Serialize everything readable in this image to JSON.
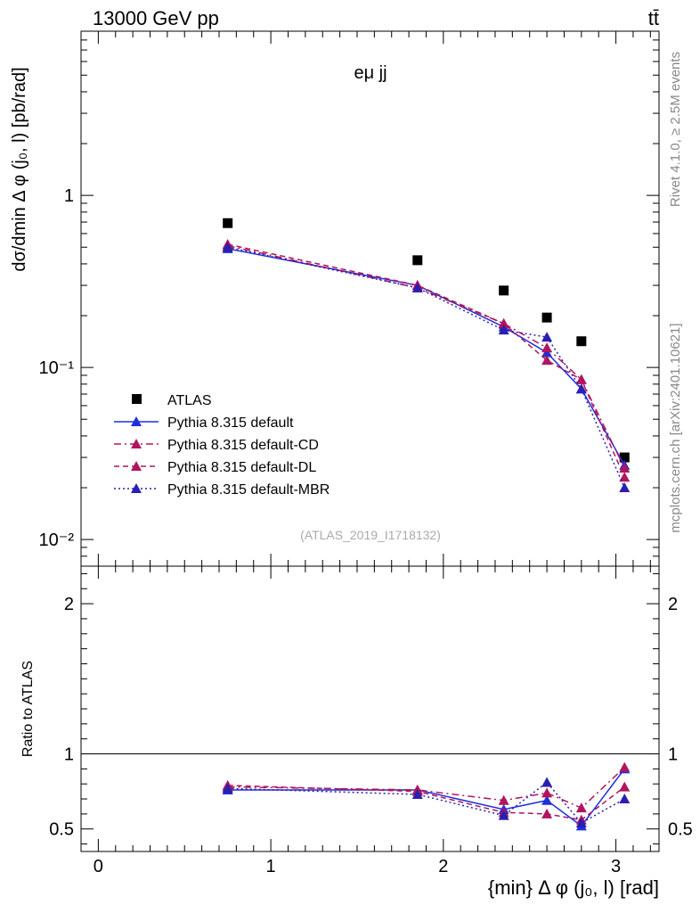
{
  "header": {
    "energy_label": "13000 GeV pp",
    "process_label": "tt̄",
    "rivet_label": "Rivet 4.1.0, ≥ 2.5M events",
    "source_label": "mcplots.cern.ch [arXiv:2401.10621]"
  },
  "chart_data": [
    {
      "type": "line",
      "panel": "main",
      "title": "eμ jj",
      "ylabel": "dσ/dmin Δ φ (j₀, l) [pb/rad]",
      "xlabel": "{min} Δ φ (j₀, l) [rad]",
      "yscale": "log",
      "xlim": [
        -0.1,
        3.25
      ],
      "ylim": [
        0.007,
        9.0
      ],
      "analysis_id": "(ATLAS_2019_I1718132)",
      "y_tick_labels": [
        "10⁻²",
        "10⁻¹",
        "1"
      ],
      "y_tick_values": [
        0.01,
        0.1,
        1
      ],
      "legend_position": "left-lower",
      "x": [
        0.75,
        1.85,
        2.35,
        2.6,
        2.8,
        3.05
      ],
      "series": [
        {
          "name": "ATLAS",
          "color": "#000000",
          "marker": "square",
          "dash": "none",
          "values": [
            0.69,
            0.42,
            0.28,
            0.195,
            0.142,
            0.03
          ]
        },
        {
          "name": "Pythia 8.315 default",
          "color": "#1f2fd9",
          "marker": "triangle",
          "dash": "solid",
          "values": [
            0.49,
            0.3,
            0.172,
            0.122,
            0.075,
            0.027
          ]
        },
        {
          "name": "Pythia 8.315 default-CD",
          "color": "#b0155d",
          "marker": "triangle",
          "dash": "dashdot",
          "values": [
            0.51,
            0.29,
            0.18,
            0.13,
            0.085,
            0.026
          ]
        },
        {
          "name": "Pythia 8.315 default-DL",
          "color": "#b0155d",
          "marker": "triangle",
          "dash": "dashed",
          "values": [
            0.52,
            0.3,
            0.18,
            0.11,
            0.085,
            0.023
          ]
        },
        {
          "name": "Pythia 8.315 default-MBR",
          "color": "#2a1fb0",
          "marker": "triangle",
          "dash": "dotted",
          "values": [
            0.5,
            0.29,
            0.165,
            0.15,
            0.075,
            0.02
          ]
        }
      ]
    },
    {
      "type": "line",
      "panel": "ratio",
      "ylabel": "Ratio to ATLAS",
      "xlabel": "{min} Δ φ (j₀, l) [rad]",
      "ylim": [
        0.35,
        2.25
      ],
      "reference_line": 1,
      "y_tick_labels": [
        "0.5",
        "1",
        "2"
      ],
      "y_tick_values": [
        0.5,
        1,
        2
      ],
      "x_tick_labels": [
        "0",
        "1",
        "2",
        "3"
      ],
      "x_tick_values": [
        0,
        1,
        2,
        3
      ],
      "x": [
        0.75,
        1.85,
        2.35,
        2.6,
        2.8,
        3.05
      ],
      "series": [
        {
          "name": "Pythia 8.315 default",
          "color": "#1f2fd9",
          "dash": "solid",
          "values": [
            0.76,
            0.76,
            0.63,
            0.69,
            0.52,
            0.9
          ]
        },
        {
          "name": "Pythia 8.315 default-CD",
          "color": "#b0155d",
          "dash": "dashdot",
          "values": [
            0.78,
            0.76,
            0.69,
            0.74,
            0.64,
            0.91
          ]
        },
        {
          "name": "Pythia 8.315 default-DL",
          "color": "#b0155d",
          "dash": "dashed",
          "values": [
            0.79,
            0.75,
            0.61,
            0.6,
            0.56,
            0.78
          ]
        },
        {
          "name": "Pythia 8.315 default-MBR",
          "color": "#2a1fb0",
          "dash": "dotted",
          "values": [
            0.77,
            0.73,
            0.59,
            0.81,
            0.54,
            0.7
          ]
        }
      ]
    }
  ]
}
